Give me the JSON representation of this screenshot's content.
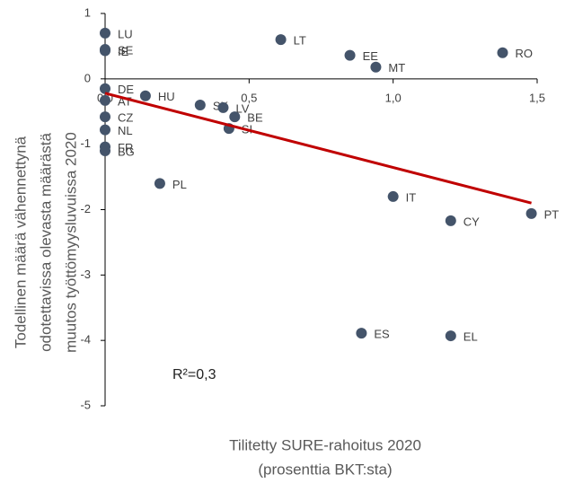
{
  "chart_data": {
    "type": "scatter",
    "x_label": [
      "Tilitetty SURE-rahoitus 2020",
      "(prosenttia BKT:sta)"
    ],
    "y_label": [
      "Todellinen määrä vähennettynä",
      "odotettavissa olevasta määrästä",
      "muutos työttömyysluvuissa 2020"
    ],
    "annotation": "R²=0,3",
    "xlim": [
      0,
      1.5
    ],
    "ylim": [
      -5,
      1
    ],
    "xticks": [
      {
        "value": 0,
        "label": "0,0"
      },
      {
        "value": 0.5,
        "label": "0,5"
      },
      {
        "value": 1,
        "label": "1,0"
      },
      {
        "value": 1.5,
        "label": "1,5"
      }
    ],
    "yticks": [
      1,
      0,
      -1,
      -2,
      -3,
      -4,
      -5
    ],
    "color": "#44546a",
    "trend_color": "#c00000",
    "labels": [
      "LU",
      "SE",
      "IE",
      "LT",
      "EE",
      "MT",
      "RO",
      "DE",
      "AT",
      "HU",
      "SK",
      "LV",
      "BE",
      "CZ",
      "SI",
      "NL",
      "FR",
      "BG",
      "PL",
      "IT",
      "CY",
      "PT",
      "ES",
      "EL"
    ],
    "x": [
      0,
      0,
      0,
      0.61,
      0.85,
      0.94,
      1.38,
      0,
      0,
      0.14,
      0.33,
      0.41,
      0.45,
      0,
      0.43,
      0,
      0,
      0,
      0.19,
      1.0,
      1.2,
      1.48,
      0.89,
      1.2
    ],
    "values": [
      0.7,
      0.45,
      0.43,
      0.6,
      0.36,
      0.18,
      0.4,
      -0.15,
      -0.33,
      -0.26,
      -0.4,
      -0.44,
      -0.58,
      -0.58,
      -0.76,
      -0.78,
      -1.04,
      -1.1,
      -1.6,
      -1.8,
      -2.17,
      -2.06,
      -3.89,
      -3.93
    ],
    "trendline": {
      "x": [
        0,
        1.48
      ],
      "y": [
        -0.22,
        -1.9
      ]
    }
  }
}
